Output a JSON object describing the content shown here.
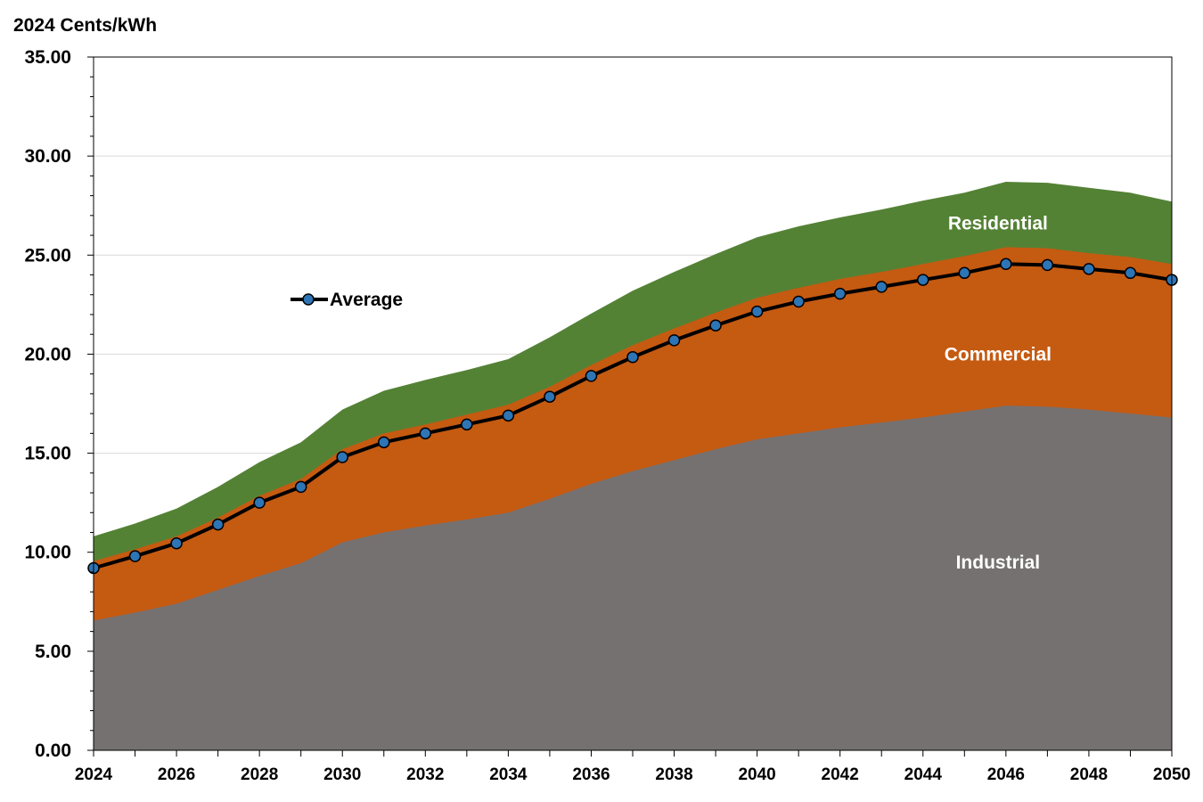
{
  "chart_data": {
    "type": "area",
    "stacked": true,
    "ylabel": "2024 Cents/kWh",
    "ylim": [
      0,
      35
    ],
    "y_ticks": [
      "0.00",
      "5.00",
      "10.00",
      "15.00",
      "20.00",
      "25.00",
      "30.00",
      "35.00"
    ],
    "x": [
      2024,
      2025,
      2026,
      2027,
      2028,
      2029,
      2030,
      2031,
      2032,
      2033,
      2034,
      2035,
      2036,
      2037,
      2038,
      2039,
      2040,
      2041,
      2042,
      2043,
      2044,
      2045,
      2046,
      2047,
      2048,
      2049,
      2050
    ],
    "x_ticks": [
      "2024",
      "2026",
      "2028",
      "2030",
      "2032",
      "2034",
      "2036",
      "2038",
      "2040",
      "2042",
      "2044",
      "2046",
      "2048",
      "2050"
    ],
    "gridlines": true,
    "series": [
      {
        "name": "Industrial",
        "color": "#767171",
        "values": [
          6.55,
          6.95,
          7.4,
          8.1,
          8.8,
          9.45,
          10.5,
          11.0,
          11.35,
          11.65,
          12.0,
          12.7,
          13.45,
          14.1,
          14.65,
          15.2,
          15.7,
          16.0,
          16.3,
          16.55,
          16.8,
          17.1,
          17.4,
          17.35,
          17.2,
          17.0,
          16.8
        ]
      },
      {
        "name": "Commercial",
        "color": "#C55A11",
        "values": [
          9.55,
          10.15,
          10.8,
          11.75,
          12.85,
          13.7,
          15.2,
          16.0,
          16.45,
          16.95,
          17.45,
          18.35,
          19.45,
          20.45,
          21.3,
          22.1,
          22.85,
          23.35,
          23.8,
          24.15,
          24.55,
          24.95,
          25.4,
          25.35,
          25.1,
          24.9,
          24.55
        ]
      },
      {
        "name": "Residential",
        "color": "#548235",
        "values": [
          10.8,
          11.45,
          12.2,
          13.3,
          14.55,
          15.55,
          17.2,
          18.15,
          18.7,
          19.2,
          19.75,
          20.85,
          22.05,
          23.2,
          24.15,
          25.05,
          25.9,
          26.45,
          26.9,
          27.3,
          27.75,
          28.15,
          28.7,
          28.65,
          28.4,
          28.15,
          27.7
        ]
      },
      {
        "name": "Average",
        "type": "line",
        "line_color": "#000000",
        "marker_color": "#2E75B6",
        "values": [
          9.2,
          9.8,
          10.45,
          11.4,
          12.5,
          13.3,
          14.8,
          15.55,
          16.0,
          16.45,
          16.9,
          17.85,
          18.9,
          19.85,
          20.7,
          21.45,
          22.15,
          22.65,
          23.05,
          23.4,
          23.75,
          24.1,
          24.55,
          24.5,
          24.3,
          24.1,
          23.75
        ]
      }
    ],
    "area_labels": [
      "Industrial",
      "Commercial",
      "Residential"
    ],
    "legend": {
      "label": "Average",
      "placement": "upper-left"
    }
  }
}
